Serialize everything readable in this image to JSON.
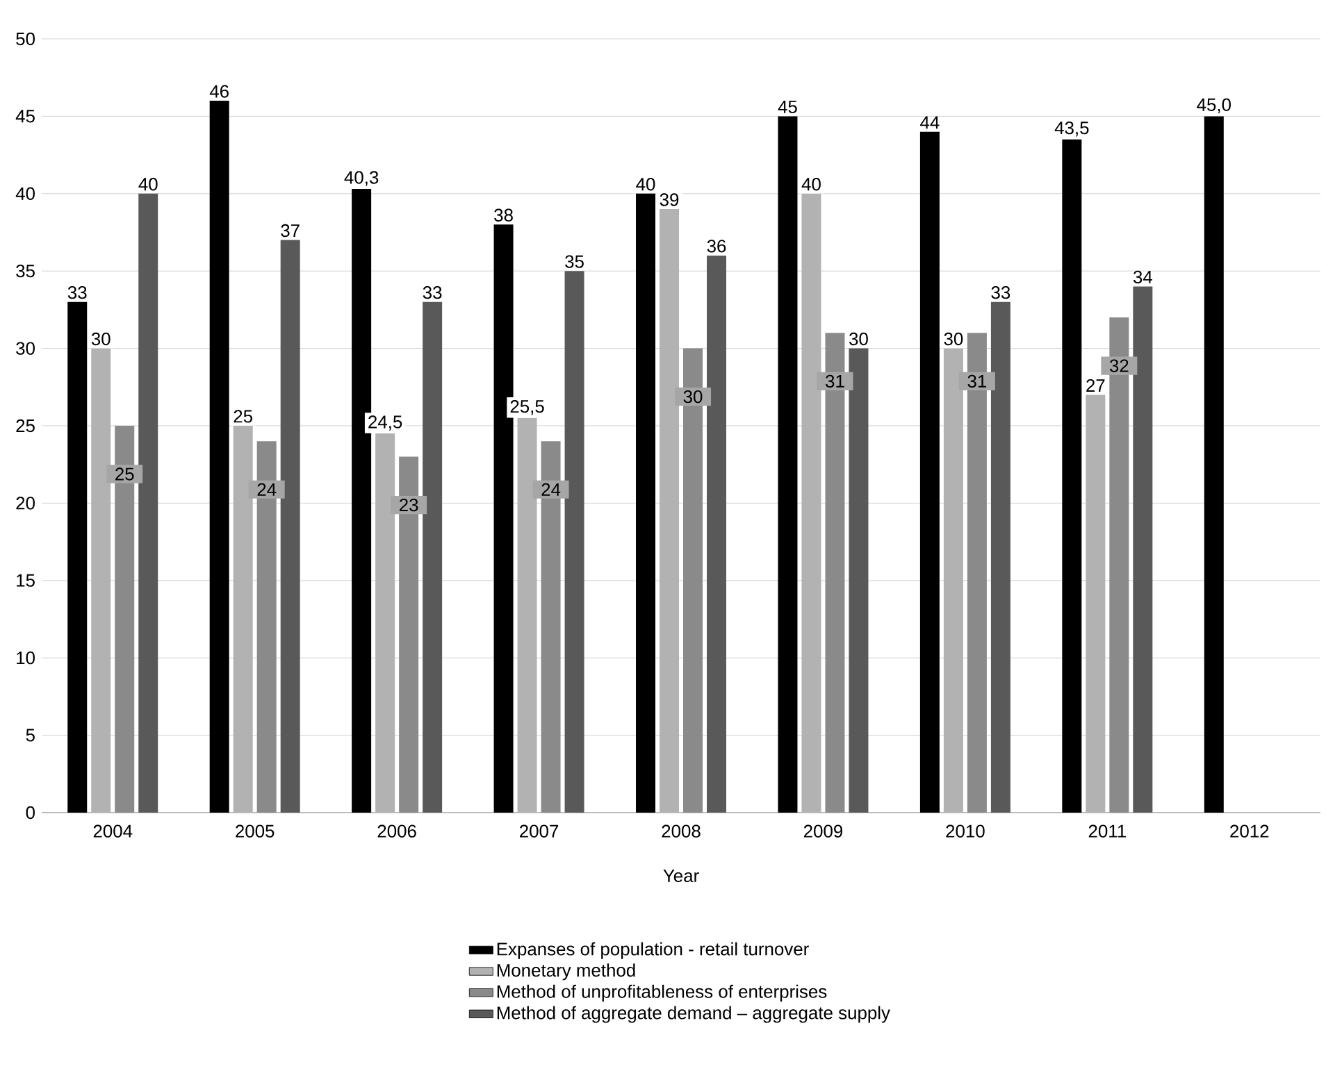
{
  "chart_data": {
    "type": "bar",
    "xlabel": "Year",
    "categories": [
      "2004",
      "2005",
      "2006",
      "2007",
      "2008",
      "2009",
      "2010",
      "2011",
      "2012"
    ],
    "series": [
      {
        "name": "Expanses of population - retail turnover",
        "color": "#000000",
        "values": [
          33,
          46,
          40.3,
          38,
          40,
          45,
          44,
          43.5,
          45.0
        ],
        "value_labels": [
          "33",
          "46",
          "40,3",
          "38",
          "40",
          "45",
          "44",
          "43,5",
          "45,0"
        ]
      },
      {
        "name": "Monetary method",
        "color": "#b2b2b2",
        "values": [
          30,
          25,
          24.5,
          25.5,
          39,
          40,
          30,
          27,
          null
        ],
        "value_labels": [
          "30",
          "25",
          "24,5",
          "25,5",
          "39",
          "40",
          "30",
          "27",
          null
        ]
      },
      {
        "name": "Method of unprofitableness of enterprises",
        "color": "#8a8a8a",
        "values": [
          25,
          24,
          23,
          24,
          30,
          31,
          31,
          32,
          null
        ],
        "value_labels": [
          "25",
          "24",
          "23",
          "24",
          "30",
          "31",
          "31",
          "32",
          null
        ]
      },
      {
        "name": "Method of aggregate demand – aggregate supply",
        "color": "#595959",
        "values": [
          40,
          37,
          33,
          35,
          36,
          30,
          33,
          34,
          null
        ],
        "value_labels": [
          "40",
          "37",
          "33",
          "35",
          "36",
          "30",
          "33",
          "34",
          null
        ]
      }
    ],
    "ylim": [
      0,
      50
    ],
    "yticks": [
      0,
      5,
      10,
      15,
      20,
      25,
      30,
      35,
      40,
      45,
      50
    ],
    "grid": "y",
    "legend": "bottom"
  }
}
